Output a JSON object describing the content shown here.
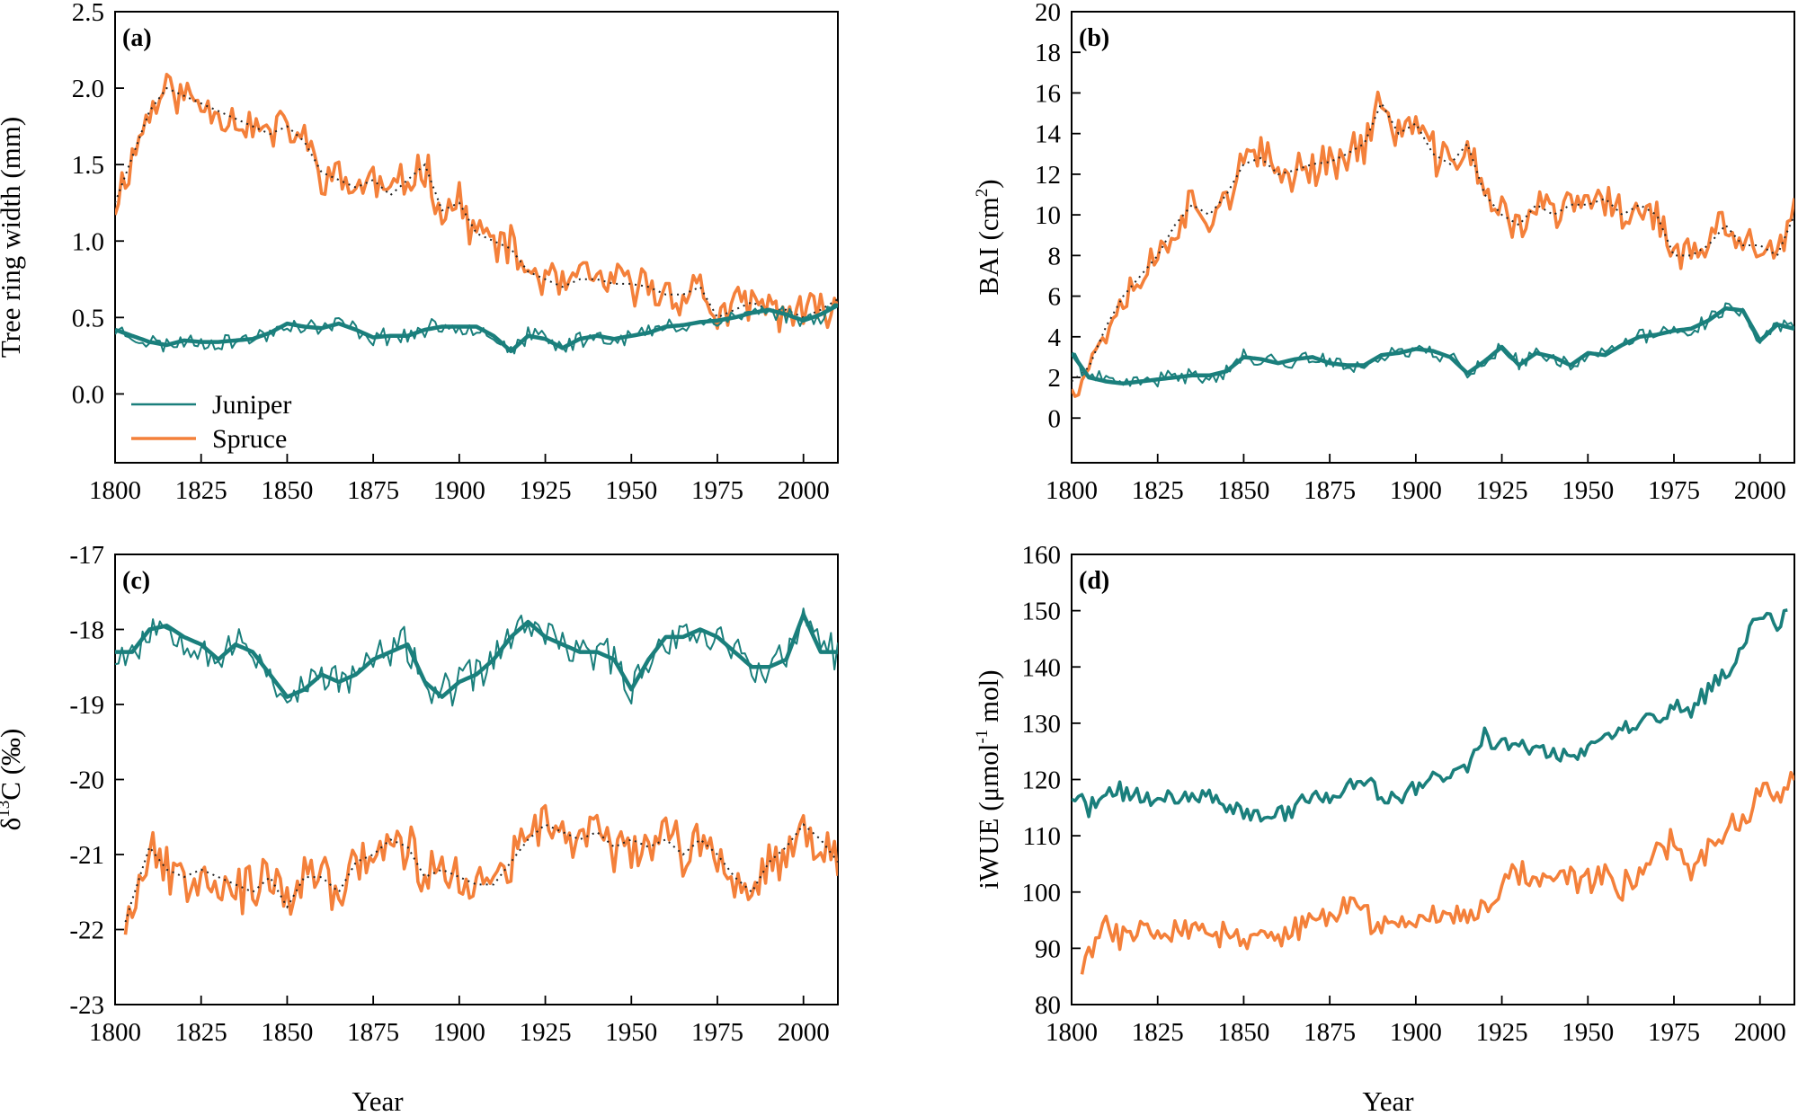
{
  "colors": {
    "juniper": "#1a7f7c",
    "spruce": "#f4803a",
    "trend": "#222222",
    "axis": "#000000"
  },
  "chart_data": [
    {
      "panel": "a",
      "panel_label": "(a)",
      "type": "line",
      "xlabel": "",
      "ylabel": "Tree ring width (mm)",
      "xlim": [
        1800,
        2010
      ],
      "ylim": [
        -0.45,
        2.5
      ],
      "xticks": [
        1800,
        1825,
        1850,
        1875,
        1900,
        1925,
        1950,
        1975,
        2000
      ],
      "yticks": [
        0.0,
        0.5,
        1.0,
        1.5,
        2.0,
        2.5
      ],
      "ytick_labels": [
        "0.0",
        "0.5",
        "1.0",
        "1.5",
        "2.0",
        "2.5"
      ],
      "legend": {
        "position": "bottom-left",
        "entries": [
          "Juniper",
          "Spruce"
        ]
      },
      "series": [
        {
          "name": "Spruce",
          "color_key": "spruce",
          "wiggle": 0.12,
          "seed": 11,
          "smooth": "dotted",
          "x": [
            1800,
            1805,
            1810,
            1815,
            1820,
            1825,
            1830,
            1835,
            1840,
            1845,
            1850,
            1855,
            1860,
            1865,
            1870,
            1875,
            1880,
            1885,
            1890,
            1895,
            1900,
            1905,
            1910,
            1915,
            1920,
            1925,
            1930,
            1935,
            1940,
            1945,
            1950,
            1955,
            1960,
            1965,
            1970,
            1975,
            1980,
            1985,
            1990,
            1995,
            2000,
            2005,
            2010
          ],
          "y": [
            1.25,
            1.55,
            1.85,
            2.0,
            1.95,
            1.9,
            1.85,
            1.8,
            1.75,
            1.7,
            1.75,
            1.65,
            1.45,
            1.4,
            1.35,
            1.4,
            1.3,
            1.4,
            1.5,
            1.2,
            1.25,
            1.05,
            1.0,
            0.95,
            0.8,
            0.75,
            0.7,
            0.75,
            0.75,
            0.72,
            0.72,
            0.7,
            0.65,
            0.65,
            0.7,
            0.5,
            0.55,
            0.6,
            0.55,
            0.55,
            0.5,
            0.55,
            0.62
          ]
        },
        {
          "name": "Juniper",
          "color_key": "juniper",
          "wiggle": 0.05,
          "seed": 23,
          "smooth": "thick",
          "x": [
            1800,
            1805,
            1810,
            1815,
            1820,
            1825,
            1830,
            1835,
            1840,
            1845,
            1850,
            1855,
            1860,
            1865,
            1870,
            1875,
            1880,
            1885,
            1890,
            1895,
            1900,
            1905,
            1910,
            1915,
            1920,
            1925,
            1930,
            1935,
            1940,
            1945,
            1950,
            1955,
            1960,
            1965,
            1970,
            1975,
            1980,
            1985,
            1990,
            1995,
            2000,
            2005,
            2010
          ],
          "y": [
            0.42,
            0.38,
            0.34,
            0.32,
            0.35,
            0.34,
            0.34,
            0.35,
            0.36,
            0.4,
            0.46,
            0.44,
            0.43,
            0.46,
            0.42,
            0.37,
            0.38,
            0.38,
            0.42,
            0.44,
            0.44,
            0.44,
            0.38,
            0.28,
            0.38,
            0.36,
            0.3,
            0.36,
            0.38,
            0.36,
            0.38,
            0.4,
            0.44,
            0.45,
            0.47,
            0.48,
            0.5,
            0.53,
            0.55,
            0.52,
            0.48,
            0.52,
            0.58
          ]
        }
      ]
    },
    {
      "panel": "b",
      "panel_label": "(b)",
      "type": "line",
      "xlabel": "",
      "ylabel": "BAI (cm²)",
      "ylabel_main": "BAI (cm",
      "ylabel_sup": "2",
      "ylabel_end": ")",
      "xlim": [
        1800,
        2010
      ],
      "ylim": [
        -2.2,
        20
      ],
      "xticks": [
        1800,
        1825,
        1850,
        1875,
        1900,
        1925,
        1950,
        1975,
        2000
      ],
      "yticks": [
        0,
        2,
        4,
        6,
        8,
        10,
        12,
        14,
        16,
        18,
        20
      ],
      "ytick_labels": [
        "0",
        "2",
        "4",
        "6",
        "8",
        "10",
        "12",
        "14",
        "16",
        "18",
        "20"
      ],
      "series": [
        {
          "name": "Spruce",
          "color_key": "spruce",
          "wiggle": 0.9,
          "seed": 37,
          "smooth": "dotted",
          "x": [
            1800,
            1805,
            1810,
            1815,
            1820,
            1825,
            1830,
            1835,
            1840,
            1845,
            1850,
            1855,
            1860,
            1865,
            1870,
            1875,
            1880,
            1885,
            1890,
            1895,
            1900,
            1905,
            1910,
            1915,
            1920,
            1925,
            1930,
            1935,
            1940,
            1945,
            1950,
            1955,
            1960,
            1965,
            1970,
            1975,
            1980,
            1985,
            1990,
            1995,
            2000,
            2005,
            2010
          ],
          "y": [
            1.8,
            2.5,
            4.5,
            6.0,
            7.0,
            8.0,
            9.5,
            10.5,
            10.0,
            11.0,
            12.5,
            12.8,
            12.0,
            12.2,
            12.5,
            12.6,
            13.0,
            13.5,
            15.5,
            14.0,
            14.5,
            13.0,
            12.5,
            13.5,
            11.0,
            10.0,
            9.5,
            10.5,
            10.0,
            10.5,
            10.5,
            10.8,
            10.0,
            10.5,
            10.0,
            8.0,
            8.0,
            8.5,
            9.5,
            8.5,
            8.5,
            8.0,
            10.0
          ]
        },
        {
          "name": "Juniper",
          "color_key": "juniper",
          "wiggle": 0.35,
          "seed": 41,
          "smooth": "thick",
          "x": [
            1800,
            1805,
            1810,
            1815,
            1820,
            1825,
            1830,
            1835,
            1840,
            1845,
            1850,
            1855,
            1860,
            1865,
            1870,
            1875,
            1880,
            1885,
            1890,
            1895,
            1900,
            1905,
            1910,
            1915,
            1920,
            1925,
            1930,
            1935,
            1940,
            1945,
            1950,
            1955,
            1960,
            1965,
            1970,
            1975,
            1980,
            1985,
            1990,
            1995,
            2000,
            2005,
            2010
          ],
          "y": [
            3.2,
            2.0,
            1.8,
            1.7,
            1.8,
            1.9,
            2.0,
            2.1,
            2.1,
            2.3,
            3.0,
            2.9,
            2.7,
            2.9,
            3.0,
            2.7,
            2.6,
            2.6,
            3.1,
            3.2,
            3.4,
            3.3,
            3.0,
            2.2,
            2.8,
            3.5,
            2.6,
            3.2,
            3.0,
            2.6,
            3.2,
            3.1,
            3.6,
            4.0,
            4.1,
            4.3,
            4.4,
            4.8,
            5.4,
            5.3,
            3.8,
            4.6,
            4.4
          ]
        }
      ]
    },
    {
      "panel": "c",
      "panel_label": "(c)",
      "type": "line",
      "xlabel": "Year",
      "ylabel": "δ¹³C (‰)",
      "ylabel_main": "δ",
      "ylabel_sup": "13",
      "ylabel_end": "C (‰)",
      "xlim": [
        1800,
        2010
      ],
      "ylim": [
        -23,
        -17
      ],
      "xticks": [
        1800,
        1825,
        1850,
        1875,
        1900,
        1925,
        1950,
        1975,
        2000
      ],
      "yticks": [
        -23,
        -22,
        -21,
        -20,
        -19,
        -18,
        -17
      ],
      "ytick_labels": [
        "-23",
        "-22",
        "-21",
        "-20",
        "-19",
        "-18",
        "-17"
      ],
      "series": [
        {
          "name": "Juniper",
          "color_key": "juniper",
          "wiggle": 0.22,
          "seed": 53,
          "smooth": "thick",
          "x": [
            1800,
            1805,
            1810,
            1815,
            1820,
            1825,
            1830,
            1835,
            1840,
            1845,
            1850,
            1855,
            1860,
            1865,
            1870,
            1875,
            1880,
            1885,
            1890,
            1895,
            1900,
            1905,
            1910,
            1915,
            1920,
            1925,
            1930,
            1935,
            1940,
            1945,
            1950,
            1955,
            1960,
            1965,
            1970,
            1975,
            1980,
            1985,
            1990,
            1995,
            2000,
            2005,
            2010
          ],
          "y": [
            -18.3,
            -18.3,
            -18.0,
            -17.95,
            -18.1,
            -18.2,
            -18.4,
            -18.2,
            -18.3,
            -18.6,
            -18.9,
            -18.8,
            -18.6,
            -18.7,
            -18.6,
            -18.4,
            -18.3,
            -18.2,
            -18.7,
            -18.9,
            -18.7,
            -18.6,
            -18.4,
            -18.1,
            -17.9,
            -18.1,
            -18.2,
            -18.3,
            -18.3,
            -18.4,
            -18.8,
            -18.4,
            -18.1,
            -18.1,
            -18.0,
            -18.1,
            -18.3,
            -18.5,
            -18.5,
            -18.4,
            -17.8,
            -18.3,
            -18.3
          ]
        },
        {
          "name": "Spruce",
          "color_key": "spruce",
          "wiggle": 0.3,
          "seed": 67,
          "smooth": "dotted",
          "x": [
            1803,
            1805,
            1810,
            1815,
            1820,
            1825,
            1830,
            1835,
            1840,
            1845,
            1850,
            1855,
            1860,
            1865,
            1870,
            1875,
            1880,
            1885,
            1890,
            1895,
            1900,
            1905,
            1910,
            1915,
            1920,
            1925,
            1930,
            1935,
            1940,
            1945,
            1950,
            1955,
            1960,
            1965,
            1970,
            1975,
            1980,
            1985,
            1990,
            1995,
            2000,
            2005,
            2010
          ],
          "y": [
            -21.9,
            -21.6,
            -20.9,
            -21.2,
            -21.3,
            -21.2,
            -21.3,
            -21.4,
            -21.5,
            -21.3,
            -21.7,
            -21.3,
            -21.3,
            -21.5,
            -21.1,
            -21.0,
            -20.8,
            -20.9,
            -21.3,
            -21.2,
            -21.3,
            -21.4,
            -21.4,
            -21.1,
            -20.8,
            -20.6,
            -20.7,
            -20.8,
            -20.7,
            -20.9,
            -20.8,
            -20.9,
            -20.8,
            -21.0,
            -20.8,
            -21.0,
            -21.3,
            -21.5,
            -21.1,
            -20.9,
            -20.6,
            -20.8,
            -21.1
          ]
        }
      ]
    },
    {
      "panel": "d",
      "panel_label": "(d)",
      "type": "line",
      "xlabel": "Year",
      "ylabel": "iWUE (μmol⁻¹ mol)",
      "ylabel_main": "iWUE (μmol",
      "ylabel_sup": "-1",
      "ylabel_end": " mol)",
      "xlim": [
        1800,
        2010
      ],
      "ylim": [
        80,
        160
      ],
      "xticks": [
        1800,
        1825,
        1850,
        1875,
        1900,
        1925,
        1950,
        1975,
        2000
      ],
      "yticks": [
        80,
        90,
        100,
        110,
        120,
        130,
        140,
        150,
        160
      ],
      "ytick_labels": [
        "80",
        "90",
        "100",
        "110",
        "120",
        "130",
        "140",
        "150",
        "160"
      ],
      "series": [
        {
          "name": "Juniper",
          "color_key": "juniper",
          "wiggle": 1.5,
          "seed": 71,
          "smooth": "none",
          "x": [
            1800,
            1805,
            1810,
            1815,
            1820,
            1825,
            1830,
            1835,
            1840,
            1845,
            1850,
            1855,
            1860,
            1865,
            1870,
            1875,
            1880,
            1885,
            1890,
            1895,
            1900,
            1905,
            1910,
            1915,
            1920,
            1925,
            1930,
            1935,
            1940,
            1945,
            1950,
            1955,
            1960,
            1965,
            1970,
            1975,
            1980,
            1985,
            1990,
            1995,
            2000,
            2005,
            2008
          ],
          "y": [
            117,
            115,
            117,
            118,
            117,
            116,
            117,
            117,
            117,
            116,
            114,
            113,
            114,
            115,
            117,
            117,
            118,
            120,
            117,
            116,
            119,
            120,
            121,
            122,
            128,
            126,
            126,
            126,
            125,
            124,
            125,
            127,
            129,
            130,
            131,
            133,
            132,
            136,
            138,
            143,
            150,
            147,
            151
          ]
        },
        {
          "name": "Spruce",
          "color_key": "spruce",
          "wiggle": 2.3,
          "seed": 83,
          "smooth": "none",
          "x": [
            1803,
            1805,
            1810,
            1815,
            1820,
            1825,
            1830,
            1835,
            1840,
            1845,
            1850,
            1855,
            1860,
            1865,
            1870,
            1875,
            1880,
            1885,
            1890,
            1895,
            1900,
            1905,
            1910,
            1915,
            1920,
            1925,
            1930,
            1935,
            1940,
            1945,
            1950,
            1955,
            1960,
            1965,
            1970,
            1975,
            1980,
            1985,
            1990,
            1995,
            2000,
            2005,
            2010
          ],
          "y": [
            86,
            89,
            94,
            92,
            93,
            95,
            93,
            94,
            92,
            93,
            90,
            92,
            92,
            93,
            94,
            96,
            98,
            96,
            94,
            95,
            95,
            96,
            97,
            96,
            97,
            102,
            104,
            102,
            103,
            103,
            102,
            103,
            101,
            104,
            107,
            109,
            104,
            107,
            110,
            113,
            118,
            118,
            120
          ]
        }
      ]
    }
  ]
}
